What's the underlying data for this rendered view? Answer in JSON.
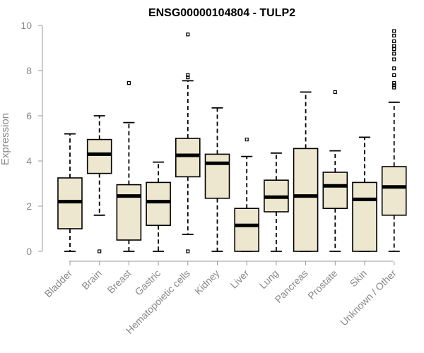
{
  "chart_data": {
    "type": "boxplot",
    "title": "ENSG00000104804 - TULP2",
    "ylabel": "Expression",
    "xlabel": "",
    "ylim": [
      0,
      10
    ],
    "yticks": [
      0,
      2,
      4,
      6,
      8,
      10
    ],
    "grid": false,
    "colors": {
      "box_fill": "#ede7cf",
      "box_stroke": "#000000",
      "axis_text": "#888888"
    },
    "categories": [
      "Bladder",
      "Brain",
      "Breast",
      "Gastric",
      "Hematopoietic cells",
      "Kidney",
      "Liver",
      "Lung",
      "Pancreas",
      "Prostate",
      "Skin",
      "Unknown / Other"
    ],
    "boxes": [
      {
        "name": "Bladder",
        "whisker_low": 0,
        "q1": 1.0,
        "median": 2.2,
        "q3": 3.25,
        "whisker_high": 5.2,
        "outliers": []
      },
      {
        "name": "Brain",
        "whisker_low": 1.6,
        "q1": 3.45,
        "median": 4.3,
        "q3": 4.95,
        "whisker_high": 6.0,
        "outliers": [
          0
        ]
      },
      {
        "name": "Breast",
        "whisker_low": 0,
        "q1": 0.5,
        "median": 2.45,
        "q3": 2.95,
        "whisker_high": 5.7,
        "outliers": [
          7.45
        ]
      },
      {
        "name": "Gastric",
        "whisker_low": 0,
        "q1": 1.15,
        "median": 2.2,
        "q3": 3.05,
        "whisker_high": 3.95,
        "outliers": []
      },
      {
        "name": "Hematopoietic cells",
        "whisker_low": 0.75,
        "q1": 3.3,
        "median": 4.25,
        "q3": 5.0,
        "whisker_high": 7.55,
        "outliers": [
          0,
          7.7,
          7.8,
          9.6
        ]
      },
      {
        "name": "Kidney",
        "whisker_low": 0,
        "q1": 2.35,
        "median": 3.9,
        "q3": 4.3,
        "whisker_high": 6.35,
        "outliers": []
      },
      {
        "name": "Liver",
        "whisker_low": 0,
        "q1": 0,
        "median": 1.15,
        "q3": 1.9,
        "whisker_high": 4.2,
        "outliers": [
          4.95
        ]
      },
      {
        "name": "Lung",
        "whisker_low": 0,
        "q1": 1.75,
        "median": 2.4,
        "q3": 3.15,
        "whisker_high": 4.35,
        "outliers": []
      },
      {
        "name": "Pancreas",
        "whisker_low": 0,
        "q1": 0,
        "median": 2.45,
        "q3": 4.55,
        "whisker_high": 7.05,
        "outliers": []
      },
      {
        "name": "Prostate",
        "whisker_low": 0,
        "q1": 1.9,
        "median": 2.9,
        "q3": 3.5,
        "whisker_high": 4.45,
        "outliers": [
          7.05
        ]
      },
      {
        "name": "Skin",
        "whisker_low": 0,
        "q1": 0,
        "median": 2.3,
        "q3": 3.05,
        "whisker_high": 5.05,
        "outliers": []
      },
      {
        "name": "Unknown / Other",
        "whisker_low": 0,
        "q1": 1.6,
        "median": 2.85,
        "q3": 3.75,
        "whisker_high": 6.6,
        "outliers": [
          7.25,
          7.35,
          7.45,
          7.8,
          8.1,
          8.5,
          8.75,
          8.95,
          9.1,
          9.3,
          9.55,
          9.75
        ]
      }
    ]
  }
}
